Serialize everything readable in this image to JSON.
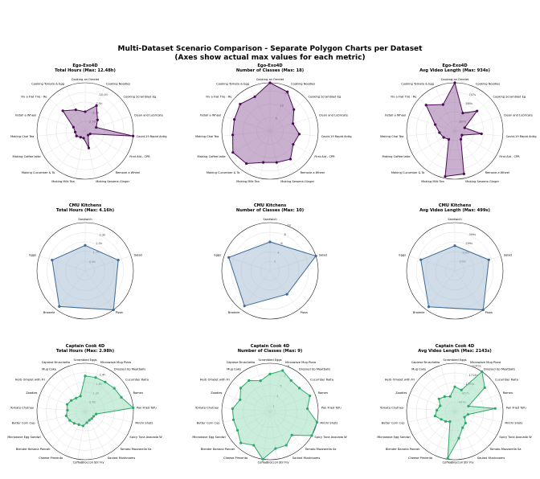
{
  "title_line1": "Multi-Dataset Scenario Comparison - Separate Polygon Charts per Dataset",
  "title_line2": "(Axes show actual max values for each metric)",
  "chart_data": [
    {
      "type": "radar",
      "dataset": "Ego-Exo4D",
      "metric": "Total Hours (Max: 12.48h)",
      "color": "#4b0c55",
      "fill": "#9b6fa6",
      "categories": [
        "Cooking an Omelet",
        "Cooking Noodles",
        "Cooking Scrambled Eg",
        "Clean and Lubricate",
        "Covid-19 Rapid Antig",
        "First Aid - CPR",
        "Remove a Wheel",
        "Making Sesame-Ginger",
        "Making Milk Tea",
        "Making Cucumber & To",
        "Making Coffee latte",
        "Making Chai Tea",
        "Install a Wheel",
        "Fix a Flat Tire - Re",
        "Cooking Tomato & Egg"
      ],
      "values": [
        5.0,
        7.2,
        4.3,
        3.0,
        12.48,
        1.5,
        1.3,
        4.5,
        1.9,
        2.0,
        2.6,
        2.6,
        3.2,
        7.8,
        6.0
      ],
      "rmax": 12.48,
      "ticks": [
        2.5,
        5.0,
        7.5,
        10.0
      ],
      "tick_labels": [
        "2.5h",
        "5.0h",
        "7.5h",
        "10.0h"
      ]
    },
    {
      "type": "radar",
      "dataset": "Ego-Exo4D",
      "metric": "Number of Classes (Max: 18)",
      "color": "#4b0c55",
      "fill": "#9b6fa6",
      "categories": [
        "Cooking an Omelet",
        "Cooking Noodles",
        "Cooking Scrambled Eg",
        "Clean and Lubricate",
        "Covid-19 Rapid Antig",
        "First Aid - CPR",
        "Remove a Wheel",
        "Making Sesame-Ginger",
        "Making Milk Tea",
        "Making Cucumber & To",
        "Making Coffee latte",
        "Making Chai Tea",
        "Install a Wheel",
        "Fix a Flat Tire - Re",
        "Cooking Tomato & Egg"
      ],
      "values": [
        18,
        16,
        12,
        9,
        11,
        10,
        13,
        12,
        12,
        15,
        16,
        14,
        14,
        15,
        14
      ],
      "rmax": 18,
      "ticks": [
        5,
        10,
        15
      ],
      "tick_labels": [
        "5",
        "10",
        "15"
      ]
    },
    {
      "type": "radar",
      "dataset": "Ego-Exo4D",
      "metric": "Avg Video Length (Max: 934s)",
      "color": "#4b0c55",
      "fill": "#9b6fa6",
      "categories": [
        "Cooking an Omelet",
        "Cooking Noodles",
        "Cooking Scrambled Eg",
        "Clean and Lubricate",
        "Covid-19 Rapid Antig",
        "First Aid - CPR",
        "Remove a Wheel",
        "Making Sesame-Ginger",
        "Making Milk Tea",
        "Making Cucumber & To",
        "Making Coffee latte",
        "Making Chai Tea",
        "Install a Wheel",
        "Fix a Flat Tire - Re",
        "Cooking Tomato & Egg"
      ],
      "values": [
        934,
        380,
        580,
        200,
        520,
        160,
        200,
        850,
        900,
        200,
        250,
        300,
        400,
        750,
        560
      ],
      "rmax": 934,
      "ticks": [
        187,
        374,
        560,
        747
      ],
      "tick_labels": [
        "187s",
        "374s",
        "560s",
        "747s"
      ]
    },
    {
      "type": "radar",
      "dataset": "CMU Kitchens",
      "metric": "Total Hours (Max: 4.16h)",
      "color": "#3d6a96",
      "fill": "#a9bfd4",
      "categories": [
        "Sandwich",
        "Salad",
        "Pizza",
        "Brownie",
        "Eggs"
      ],
      "values": [
        2.2,
        3.0,
        4.16,
        3.8,
        3.0
      ],
      "rmax": 4.16,
      "ticks": [
        0.8,
        1.7,
        2.5,
        3.3
      ],
      "tick_labels": [
        "0.8h",
        "1.7h",
        "2.5h",
        "3.3h"
      ]
    },
    {
      "type": "radar",
      "dataset": "CMU Kitchens",
      "metric": "Number of Classes (Max: 10)",
      "color": "#3d6a96",
      "fill": "#a9bfd4",
      "categories": [
        "Sandwich",
        "Salad",
        "Pizza",
        "Brownie",
        "Eggs"
      ],
      "values": [
        6,
        10,
        6,
        9,
        9
      ],
      "rmax": 10,
      "ticks": [
        2,
        4,
        6,
        8,
        10
      ],
      "tick_labels": [
        "2",
        "4",
        "6",
        "8",
        "10"
      ]
    },
    {
      "type": "radar",
      "dataset": "CMU Kitchens",
      "metric": "Avg Video Length (Max: 499s)",
      "color": "#3d6a96",
      "fill": "#a9bfd4",
      "categories": [
        "Sandwich",
        "Salad",
        "Pizza",
        "Brownie",
        "Eggs"
      ],
      "values": [
        260,
        370,
        499,
        460,
        370
      ],
      "rmax": 499,
      "ticks": [
        100,
        200,
        299,
        399
      ],
      "tick_labels": [
        "100s",
        "200s",
        "299s",
        "399s"
      ]
    },
    {
      "type": "radar",
      "dataset": "Captain Cook 4D",
      "metric": "Total Hours (Max: 2.98h)",
      "color": "#2ea96a",
      "fill": "#9fe0bd",
      "categories": [
        "Scrambled Eggs",
        "Microwave Mug Pizza",
        "Dressed Up Meatballs",
        "Cucumber Raita",
        "Ramen",
        "Pan Fried Tofu",
        "Mirchi Shots",
        "Spicy Tuna Avocado W",
        "Tomato Mozzarella Sa",
        "Sauted Mushrooms",
        "Broccoli Stir Fry",
        "Coffee",
        "Cheese Pimiento",
        "Blender Banana Pancak",
        "Microwave Egg Sandwi",
        "Butter Corn Cup",
        "Tomato Chutney",
        "Zoodles",
        "Herb Omelet with Fri",
        "Mug Cake",
        "Caprese Bruschetta"
      ],
      "values": [
        2.2,
        2.2,
        2.2,
        2.3,
        2.4,
        2.98,
        0.7,
        0.6,
        0.6,
        0.6,
        0.7,
        0.9,
        0.9,
        1.0,
        1.1,
        1.2,
        1.1,
        1.2,
        1.1,
        1.0,
        1.0
      ],
      "rmax": 2.98,
      "ticks": [
        0.6,
        1.2,
        1.8,
        2.4
      ],
      "tick_labels": [
        "0.6h",
        "1.2h",
        "1.8h",
        "2.4h"
      ]
    },
    {
      "type": "radar",
      "dataset": "Captain Cook 4D",
      "metric": "Number of Classes (Max: 9)",
      "color": "#2ea96a",
      "fill": "#9fe0bd",
      "categories": [
        "Scrambled Eggs",
        "Microwave Mug Pizza",
        "Dressed Up Meatballs",
        "Cucumber Raita",
        "Ramen",
        "Pan Fried Tofu",
        "Mirchi Shots",
        "Spicy Tuna Avocado W",
        "Tomato Mozzarella Sa",
        "Sauted Mushrooms",
        "Broccoli Stir Fry",
        "Coffee",
        "Cheese Pimiento",
        "Blender Banana Pancak",
        "Microwave Egg Sandwi",
        "Butter Corn Cup",
        "Tomato Chutney",
        "Zoodles",
        "Herb Omelet with Fri",
        "Mug Cake",
        "Caprese Bruschetta"
      ],
      "values": [
        7,
        8,
        7,
        7,
        8,
        7,
        9,
        9,
        6,
        7,
        7,
        9,
        7,
        8,
        7,
        7,
        7,
        6,
        7,
        7,
        6
      ],
      "rmax": 9,
      "ticks": [
        1,
        3,
        5,
        7,
        9
      ],
      "tick_labels": [
        "1",
        "3",
        "5",
        "7",
        "9"
      ]
    },
    {
      "type": "radar",
      "dataset": "Captain Cook 4D",
      "metric": "Avg Video Length (Max: 2143s)",
      "color": "#2ea96a",
      "fill": "#9fe0bd",
      "categories": [
        "Scrambled Eggs",
        "Microwave Mug Pizza",
        "Dressed Up Meatballs",
        "Cucumber Raita",
        "Ramen",
        "Pan Fried Tofu",
        "Mirchi Shots",
        "Spicy Tuna Avocado W",
        "Tomato Mozzarella Sa",
        "Sauted Mushrooms",
        "Broccoli Stir Fry",
        "Coffee",
        "Cheese Pimiento",
        "Blender Banana Pancak",
        "Microwave Egg Sandwi",
        "Butter Corn Cup",
        "Tomato Chutney",
        "Zoodles",
        "Herb Omelet with Fri",
        "Mug Cake",
        "Caprese Bruschetta"
      ],
      "values": [
        1100,
        1000,
        2143,
        1700,
        650,
        1800,
        600,
        500,
        700,
        800,
        1200,
        2100,
        500,
        600,
        700,
        900,
        800,
        700,
        900,
        800,
        700
      ],
      "rmax": 2143,
      "ticks": [
        429,
        857,
        1286,
        1714,
        2143
      ],
      "tick_labels": [
        "429s",
        "857s",
        "1286s",
        "1714s",
        "2143s"
      ]
    }
  ]
}
